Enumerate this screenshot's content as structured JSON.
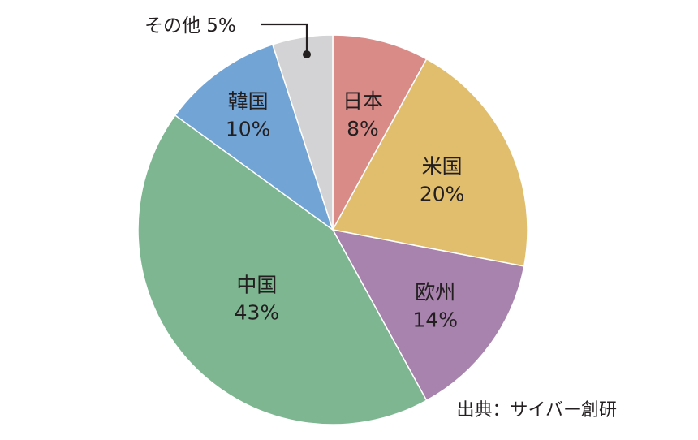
{
  "chart_data": {
    "type": "pie",
    "start": "top",
    "direction": "clockwise",
    "slices": [
      {
        "name": "日本",
        "value": 8,
        "value_label": "8%",
        "color": "#d98b88"
      },
      {
        "name": "米国",
        "value": 20,
        "value_label": "20%",
        "color": "#e0be6e"
      },
      {
        "name": "欧州",
        "value": 14,
        "value_label": "14%",
        "color": "#a783ae"
      },
      {
        "name": "中国",
        "value": 43,
        "value_label": "43%",
        "color": "#7db690"
      },
      {
        "name": "韓国",
        "value": 10,
        "value_label": "10%",
        "color": "#72a4d6"
      },
      {
        "name": "その他",
        "value": 5,
        "value_label": "5%",
        "color": "#d3d3d5",
        "label": "その他 5%"
      }
    ]
  },
  "source": "出典：サイバー創研",
  "colors": {
    "text": "#231f20",
    "leader_line": "#231f20",
    "slice_border": "#ffffff"
  }
}
